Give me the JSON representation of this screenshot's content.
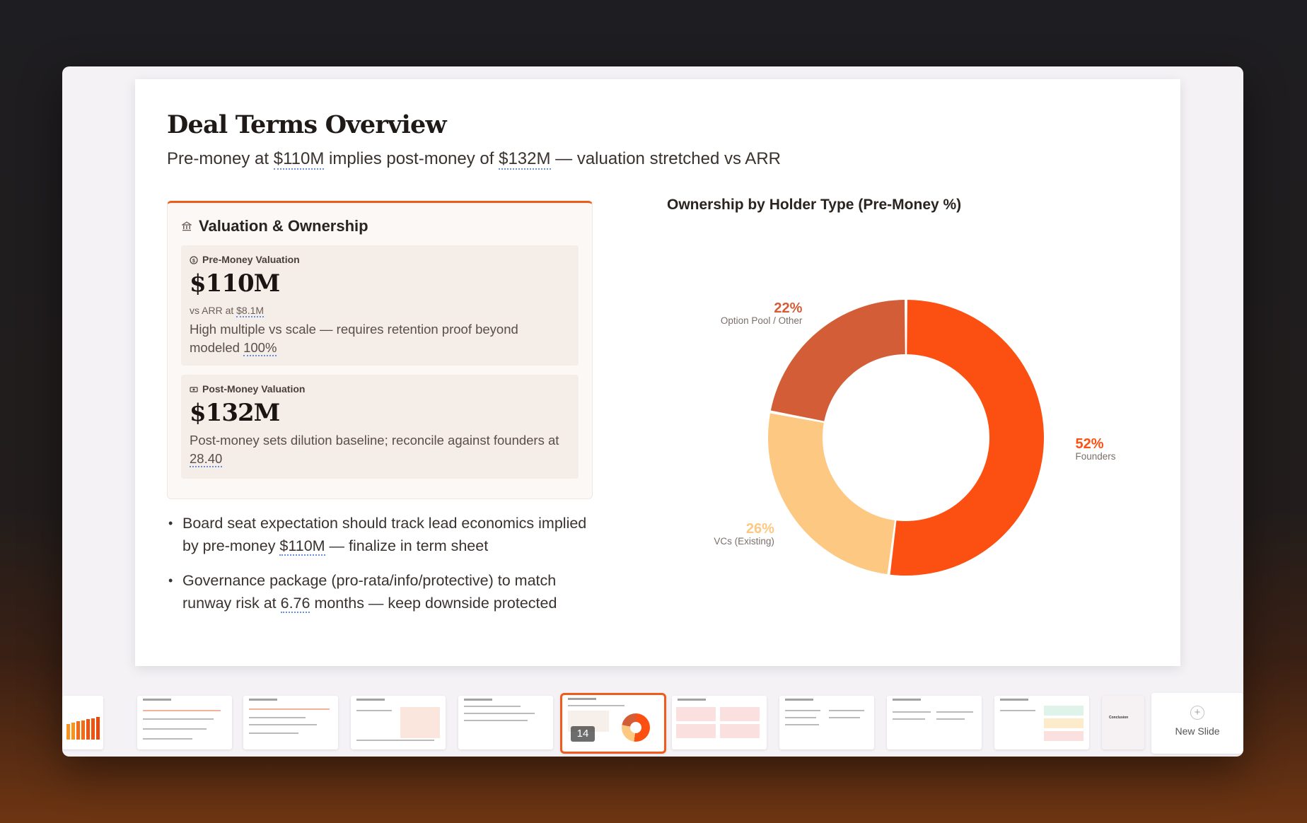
{
  "slide": {
    "title": "Deal Terms Overview",
    "subtitle": {
      "pre": "Pre-money at ",
      "v1": "$110M",
      "mid": " implies post-money of ",
      "v2": "$132M",
      "post": " — valuation stretched vs ARR"
    },
    "card": {
      "header": "Valuation & Ownership",
      "header_icon": "bank-icon",
      "pre_money": {
        "label": "Pre-Money Valuation",
        "icon": "dollar-circle-icon",
        "value": "$110M",
        "sub_pre": "vs ARR at ",
        "sub_val": "$8.1M",
        "note_pre": "High multiple vs scale — requires retention proof beyond modeled ",
        "note_val": "100%"
      },
      "post_money": {
        "label": "Post-Money Valuation",
        "icon": "money-icon",
        "value": "$132M",
        "note_pre": "Post-money sets dilution baseline; reconcile against founders at ",
        "note_val": "28.40"
      }
    },
    "bullets": [
      {
        "pre": "Board seat expectation should track lead economics implied by pre-money ",
        "val": "$110M",
        "post": " — finalize in term sheet"
      },
      {
        "pre": "Governance package (pro-rata/info/protective) to match runway risk at ",
        "val": "6.76",
        "post": " months — keep downside protected"
      }
    ],
    "bullet_char": "•"
  },
  "chart_data": {
    "type": "donut",
    "title": "Ownership by Holder Type (Pre-Money %)",
    "slices": [
      {
        "name": "Founders",
        "value": 52,
        "label": "52%",
        "color": "#fc4f12"
      },
      {
        "name": "VCs (Existing)",
        "value": 26,
        "label": "26%",
        "color": "#fdc882"
      },
      {
        "name": "Option Pool / Other",
        "value": 22,
        "label": "22%",
        "color": "#d35d36"
      }
    ]
  },
  "filmstrip": {
    "active_slide_number": "14",
    "new_slide_label": "New Slide",
    "new_slide_icon": "plus-icon",
    "thumb_labels": {
      "conclusion": "Conclusion"
    }
  },
  "colors": {
    "accent": "#f05a1a",
    "founders": "#fc4f12",
    "vcs": "#fdc882",
    "option_pool": "#d35d36"
  }
}
